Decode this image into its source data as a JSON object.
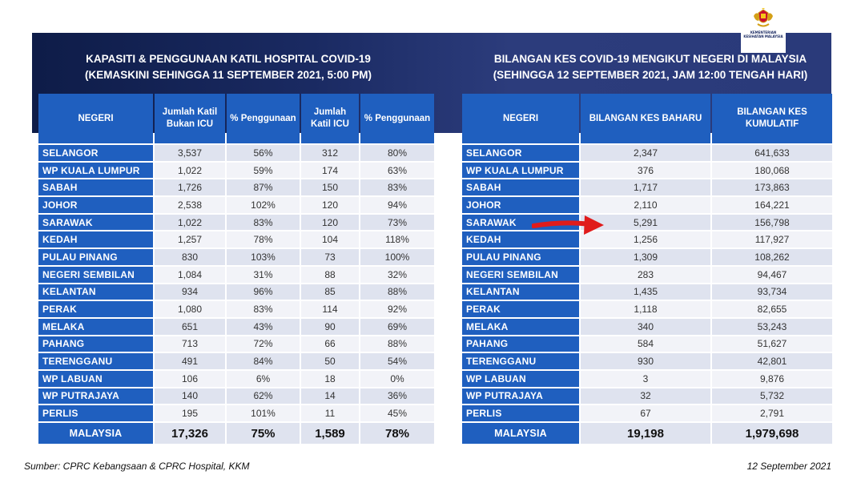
{
  "ministry_logo_text": "KEMENTERIAN KESIHATAN MALAYSIA",
  "left": {
    "title_line1": "KAPASITI & PENGGUNAAN KATIL HOSPITAL COVID-19",
    "title_line2": "(KEMASKINI SEHINGGA 11 SEPTEMBER 2021, 5:00 PM)",
    "headers": [
      "NEGERI",
      "Jumlah Katil Bukan ICU",
      "% Penggunaan",
      "Jumlah Katil ICU",
      "% Penggunaan"
    ],
    "rows": [
      [
        "SELANGOR",
        "3,537",
        "56%",
        "312",
        "80%"
      ],
      [
        "WP KUALA LUMPUR",
        "1,022",
        "59%",
        "174",
        "63%"
      ],
      [
        "SABAH",
        "1,726",
        "87%",
        "150",
        "83%"
      ],
      [
        "JOHOR",
        "2,538",
        "102%",
        "120",
        "94%"
      ],
      [
        "SARAWAK",
        "1,022",
        "83%",
        "120",
        "73%"
      ],
      [
        "KEDAH",
        "1,257",
        "78%",
        "104",
        "118%"
      ],
      [
        "PULAU PINANG",
        "830",
        "103%",
        "73",
        "100%"
      ],
      [
        "NEGERI SEMBILAN",
        "1,084",
        "31%",
        "88",
        "32%"
      ],
      [
        "KELANTAN",
        "934",
        "96%",
        "85",
        "88%"
      ],
      [
        "PERAK",
        "1,080",
        "83%",
        "114",
        "92%"
      ],
      [
        "MELAKA",
        "651",
        "43%",
        "90",
        "69%"
      ],
      [
        "PAHANG",
        "713",
        "72%",
        "66",
        "88%"
      ],
      [
        "TERENGGANU",
        "491",
        "84%",
        "50",
        "54%"
      ],
      [
        "WP LABUAN",
        "106",
        "6%",
        "18",
        "0%"
      ],
      [
        "WP PUTRAJAYA",
        "140",
        "62%",
        "14",
        "36%"
      ],
      [
        "PERLIS",
        "195",
        "101%",
        "11",
        "45%"
      ]
    ],
    "total": [
      "MALAYSIA",
      "17,326",
      "75%",
      "1,589",
      "78%"
    ]
  },
  "right": {
    "title_line1": "BILANGAN KES COVID-19 MENGIKUT NEGERI DI MALAYSIA",
    "title_line2": "(SEHINGGA 12 SEPTEMBER 2021, JAM 12:00 TENGAH HARI)",
    "headers": [
      "NEGERI",
      "BILANGAN KES BAHARU",
      "BILANGAN KES KUMULATIF"
    ],
    "rows": [
      [
        "SELANGOR",
        "2,347",
        "641,633"
      ],
      [
        "WP KUALA LUMPUR",
        "376",
        "180,068"
      ],
      [
        "SABAH",
        "1,717",
        "173,863"
      ],
      [
        "JOHOR",
        "2,110",
        "164,221"
      ],
      [
        "SARAWAK",
        "5,291",
        "156,798"
      ],
      [
        "KEDAH",
        "1,256",
        "117,927"
      ],
      [
        "PULAU PINANG",
        "1,309",
        "108,262"
      ],
      [
        "NEGERI SEMBILAN",
        "283",
        "94,467"
      ],
      [
        "KELANTAN",
        "1,435",
        "93,734"
      ],
      [
        "PERAK",
        "1,118",
        "82,655"
      ],
      [
        "MELAKA",
        "340",
        "53,243"
      ],
      [
        "PAHANG",
        "584",
        "51,627"
      ],
      [
        "TERENGGANU",
        "930",
        "42,801"
      ],
      [
        "WP LABUAN",
        "3",
        "9,876"
      ],
      [
        "WP PUTRAJAYA",
        "32",
        "5,732"
      ],
      [
        "PERLIS",
        "67",
        "2,791"
      ]
    ],
    "total": [
      "MALAYSIA",
      "19,198",
      "1,979,698"
    ]
  },
  "footer": {
    "source": "Sumber: CPRC Kebangsaan & CPRC Hospital, KKM",
    "date": "12 September 2021"
  },
  "colors": {
    "banner": "#1a2a62",
    "header_blue": "#1f5fbf",
    "arrow_red": "#e01b1b"
  }
}
